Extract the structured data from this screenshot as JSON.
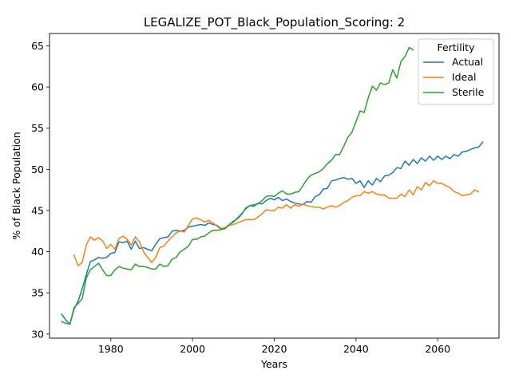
{
  "chart_data": {
    "type": "line",
    "title": "LEGALIZE_POT_Black_Population_Scoring: 2",
    "xlabel": "Years",
    "ylabel": "% of Black Population",
    "xlim": [
      1965,
      2075
    ],
    "ylim": [
      29.5,
      66.5
    ],
    "x_ticks": [
      1980,
      2000,
      2020,
      2040,
      2060
    ],
    "y_ticks": [
      30,
      35,
      40,
      45,
      50,
      55,
      60,
      65
    ],
    "grid": false,
    "legend": {
      "title": "Fertility",
      "placement": "top-right"
    },
    "series": [
      {
        "name": "Actual",
        "color": "#1f77b4",
        "points": [
          [
            1968,
            32.4
          ],
          [
            1969,
            31.7
          ],
          [
            1970,
            31.2
          ],
          [
            1971,
            33.0
          ],
          [
            1972,
            34.0
          ],
          [
            1973,
            35.5
          ],
          [
            1974,
            37.2
          ],
          [
            1975,
            38.8
          ],
          [
            1976,
            39.0
          ],
          [
            1977,
            39.3
          ],
          [
            1978,
            39.2
          ],
          [
            1979,
            39.3
          ],
          [
            1980,
            39.8
          ],
          [
            1981,
            39.9
          ],
          [
            1982,
            41.2
          ],
          [
            1983,
            41.1
          ],
          [
            1984,
            41.3
          ],
          [
            1985,
            40.3
          ],
          [
            1986,
            41.3
          ],
          [
            1987,
            40.4
          ],
          [
            1988,
            40.5
          ],
          [
            1989,
            40.3
          ],
          [
            1990,
            40.1
          ],
          [
            1991,
            40.9
          ],
          [
            1992,
            41.6
          ],
          [
            1993,
            41.7
          ],
          [
            1994,
            41.8
          ],
          [
            1995,
            42.5
          ],
          [
            1996,
            42.6
          ],
          [
            1997,
            42.5
          ],
          [
            1998,
            42.6
          ],
          [
            1999,
            43.0
          ],
          [
            2000,
            43.1
          ],
          [
            2001,
            43.2
          ],
          [
            2002,
            43.3
          ],
          [
            2003,
            43.2
          ],
          [
            2004,
            43.5
          ],
          [
            2005,
            43.3
          ],
          [
            2006,
            43.2
          ],
          [
            2007,
            42.8
          ],
          [
            2008,
            42.9
          ],
          [
            2009,
            43.3
          ],
          [
            2010,
            43.6
          ],
          [
            2011,
            44.1
          ],
          [
            2012,
            44.6
          ],
          [
            2013,
            45.2
          ],
          [
            2014,
            45.6
          ],
          [
            2015,
            45.5
          ],
          [
            2016,
            45.9
          ],
          [
            2017,
            45.8
          ],
          [
            2018,
            46.2
          ],
          [
            2019,
            46.5
          ],
          [
            2020,
            46.3
          ],
          [
            2021,
            46.6
          ],
          [
            2022,
            46.2
          ],
          [
            2023,
            46.4
          ],
          [
            2024,
            46.1
          ],
          [
            2025,
            45.9
          ],
          [
            2026,
            45.8
          ],
          [
            2027,
            45.7
          ],
          [
            2028,
            46.1
          ],
          [
            2029,
            46.0
          ],
          [
            2030,
            46.7
          ],
          [
            2031,
            46.9
          ],
          [
            2032,
            47.6
          ],
          [
            2033,
            47.7
          ],
          [
            2034,
            48.6
          ],
          [
            2035,
            48.7
          ],
          [
            2036,
            48.9
          ],
          [
            2037,
            49.0
          ],
          [
            2038,
            48.8
          ],
          [
            2039,
            48.9
          ],
          [
            2040,
            48.3
          ],
          [
            2041,
            48.6
          ],
          [
            2042,
            47.8
          ],
          [
            2043,
            48.6
          ],
          [
            2044,
            48.1
          ],
          [
            2045,
            48.9
          ],
          [
            2046,
            48.5
          ],
          [
            2047,
            49.2
          ],
          [
            2048,
            49.3
          ],
          [
            2049,
            49.6
          ],
          [
            2050,
            50.2
          ],
          [
            2051,
            50.1
          ],
          [
            2052,
            51.0
          ],
          [
            2053,
            50.5
          ],
          [
            2054,
            51.2
          ],
          [
            2055,
            50.7
          ],
          [
            2056,
            51.4
          ],
          [
            2057,
            51.0
          ],
          [
            2058,
            51.6
          ],
          [
            2059,
            51.1
          ],
          [
            2060,
            51.6
          ],
          [
            2061,
            51.2
          ],
          [
            2062,
            51.6
          ],
          [
            2063,
            51.3
          ],
          [
            2064,
            51.8
          ],
          [
            2065,
            51.6
          ],
          [
            2066,
            52.1
          ],
          [
            2067,
            52.2
          ],
          [
            2068,
            52.4
          ],
          [
            2069,
            52.6
          ],
          [
            2070,
            52.7
          ],
          [
            2071,
            53.3
          ]
        ]
      },
      {
        "name": "Ideal",
        "color": "#ff7f0e",
        "points": [
          [
            1971,
            39.6
          ],
          [
            1972,
            38.3
          ],
          [
            1973,
            38.7
          ],
          [
            1974,
            40.8
          ],
          [
            1975,
            41.8
          ],
          [
            1976,
            41.4
          ],
          [
            1977,
            41.7
          ],
          [
            1978,
            41.3
          ],
          [
            1979,
            40.4
          ],
          [
            1980,
            40.9
          ],
          [
            1981,
            40.3
          ],
          [
            1982,
            41.6
          ],
          [
            1983,
            41.9
          ],
          [
            1984,
            41.5
          ],
          [
            1985,
            40.8
          ],
          [
            1986,
            41.8
          ],
          [
            1987,
            41.2
          ],
          [
            1988,
            40.0
          ],
          [
            1989,
            39.3
          ],
          [
            1990,
            38.7
          ],
          [
            1991,
            39.3
          ],
          [
            1992,
            40.5
          ],
          [
            1993,
            40.7
          ],
          [
            1994,
            41.3
          ],
          [
            1995,
            41.8
          ],
          [
            1996,
            42.3
          ],
          [
            1997,
            42.5
          ],
          [
            1998,
            42.4
          ],
          [
            1999,
            43.2
          ],
          [
            2000,
            44.0
          ],
          [
            2001,
            44.1
          ],
          [
            2002,
            43.9
          ],
          [
            2003,
            43.6
          ],
          [
            2004,
            43.8
          ],
          [
            2005,
            43.5
          ],
          [
            2006,
            43.1
          ],
          [
            2007,
            42.7
          ],
          [
            2008,
            42.9
          ],
          [
            2009,
            43.2
          ],
          [
            2010,
            43.3
          ],
          [
            2011,
            43.5
          ],
          [
            2012,
            43.7
          ],
          [
            2013,
            43.9
          ],
          [
            2014,
            43.9
          ],
          [
            2015,
            43.9
          ],
          [
            2016,
            44.2
          ],
          [
            2017,
            44.6
          ],
          [
            2018,
            45.1
          ],
          [
            2019,
            45.0
          ],
          [
            2020,
            45.0
          ],
          [
            2021,
            45.4
          ],
          [
            2022,
            45.3
          ],
          [
            2023,
            45.7
          ],
          [
            2024,
            45.3
          ],
          [
            2025,
            45.7
          ],
          [
            2026,
            45.5
          ],
          [
            2027,
            45.8
          ],
          [
            2028,
            45.6
          ],
          [
            2029,
            45.5
          ],
          [
            2030,
            45.4
          ],
          [
            2031,
            45.4
          ],
          [
            2032,
            45.2
          ],
          [
            2033,
            45.4
          ],
          [
            2034,
            45.6
          ],
          [
            2035,
            45.4
          ],
          [
            2036,
            45.6
          ],
          [
            2037,
            46.0
          ],
          [
            2038,
            46.2
          ],
          [
            2039,
            46.6
          ],
          [
            2040,
            46.8
          ],
          [
            2041,
            46.8
          ],
          [
            2042,
            47.3
          ],
          [
            2043,
            47.1
          ],
          [
            2044,
            47.3
          ],
          [
            2045,
            47.0
          ],
          [
            2046,
            46.9
          ],
          [
            2047,
            46.9
          ],
          [
            2048,
            46.5
          ],
          [
            2049,
            46.5
          ],
          [
            2050,
            46.5
          ],
          [
            2051,
            47.0
          ],
          [
            2052,
            46.7
          ],
          [
            2053,
            47.5
          ],
          [
            2054,
            46.9
          ],
          [
            2055,
            47.9
          ],
          [
            2056,
            47.5
          ],
          [
            2057,
            48.4
          ],
          [
            2058,
            48.0
          ],
          [
            2059,
            48.6
          ],
          [
            2060,
            48.3
          ],
          [
            2061,
            48.3
          ],
          [
            2062,
            48.0
          ],
          [
            2063,
            47.8
          ],
          [
            2064,
            47.3
          ],
          [
            2065,
            47.1
          ],
          [
            2066,
            46.8
          ],
          [
            2067,
            46.9
          ],
          [
            2068,
            47.0
          ],
          [
            2069,
            47.5
          ],
          [
            2070,
            47.3
          ]
        ]
      },
      {
        "name": "Sterile",
        "color": "#2ca02c",
        "points": [
          [
            1968,
            31.5
          ],
          [
            1969,
            31.3
          ],
          [
            1970,
            31.2
          ],
          [
            1971,
            33.2
          ],
          [
            1972,
            33.7
          ],
          [
            1973,
            34.3
          ],
          [
            1974,
            36.8
          ],
          [
            1975,
            37.8
          ],
          [
            1976,
            38.2
          ],
          [
            1977,
            38.6
          ],
          [
            1978,
            37.8
          ],
          [
            1979,
            37.1
          ],
          [
            1980,
            37.1
          ],
          [
            1981,
            37.8
          ],
          [
            1982,
            38.2
          ],
          [
            1983,
            38.0
          ],
          [
            1984,
            37.9
          ],
          [
            1985,
            37.8
          ],
          [
            1986,
            38.5
          ],
          [
            1987,
            38.2
          ],
          [
            1988,
            38.2
          ],
          [
            1989,
            38.1
          ],
          [
            1990,
            37.9
          ],
          [
            1991,
            37.9
          ],
          [
            1992,
            38.5
          ],
          [
            1993,
            38.2
          ],
          [
            1994,
            38.3
          ],
          [
            1995,
            39.1
          ],
          [
            1996,
            39.3
          ],
          [
            1997,
            40.0
          ],
          [
            1998,
            40.3
          ],
          [
            1999,
            40.7
          ],
          [
            2000,
            41.5
          ],
          [
            2001,
            41.5
          ],
          [
            2002,
            41.8
          ],
          [
            2003,
            41.9
          ],
          [
            2004,
            42.3
          ],
          [
            2005,
            42.6
          ],
          [
            2006,
            42.6
          ],
          [
            2007,
            42.7
          ],
          [
            2008,
            42.8
          ],
          [
            2009,
            43.3
          ],
          [
            2010,
            43.7
          ],
          [
            2011,
            44.0
          ],
          [
            2012,
            44.5
          ],
          [
            2013,
            45.3
          ],
          [
            2014,
            45.6
          ],
          [
            2015,
            45.7
          ],
          [
            2016,
            45.8
          ],
          [
            2017,
            46.2
          ],
          [
            2018,
            46.7
          ],
          [
            2019,
            46.8
          ],
          [
            2020,
            46.7
          ],
          [
            2021,
            47.1
          ],
          [
            2022,
            47.4
          ],
          [
            2023,
            47.0
          ],
          [
            2024,
            47.0
          ],
          [
            2025,
            47.2
          ],
          [
            2026,
            47.3
          ],
          [
            2027,
            48.0
          ],
          [
            2028,
            48.8
          ],
          [
            2029,
            49.3
          ],
          [
            2030,
            49.5
          ],
          [
            2031,
            49.7
          ],
          [
            2032,
            50.1
          ],
          [
            2033,
            50.7
          ],
          [
            2034,
            51.1
          ],
          [
            2035,
            51.8
          ],
          [
            2036,
            51.8
          ],
          [
            2037,
            52.8
          ],
          [
            2038,
            53.9
          ],
          [
            2039,
            54.5
          ],
          [
            2040,
            55.8
          ],
          [
            2041,
            57.1
          ],
          [
            2042,
            56.9
          ],
          [
            2043,
            58.7
          ],
          [
            2044,
            60.1
          ],
          [
            2045,
            59.6
          ],
          [
            2046,
            60.5
          ],
          [
            2047,
            60.3
          ],
          [
            2048,
            60.5
          ],
          [
            2049,
            62.1
          ],
          [
            2050,
            61.1
          ],
          [
            2051,
            63.1
          ],
          [
            2052,
            63.7
          ],
          [
            2053,
            64.8
          ],
          [
            2054,
            64.5
          ]
        ]
      }
    ]
  }
}
